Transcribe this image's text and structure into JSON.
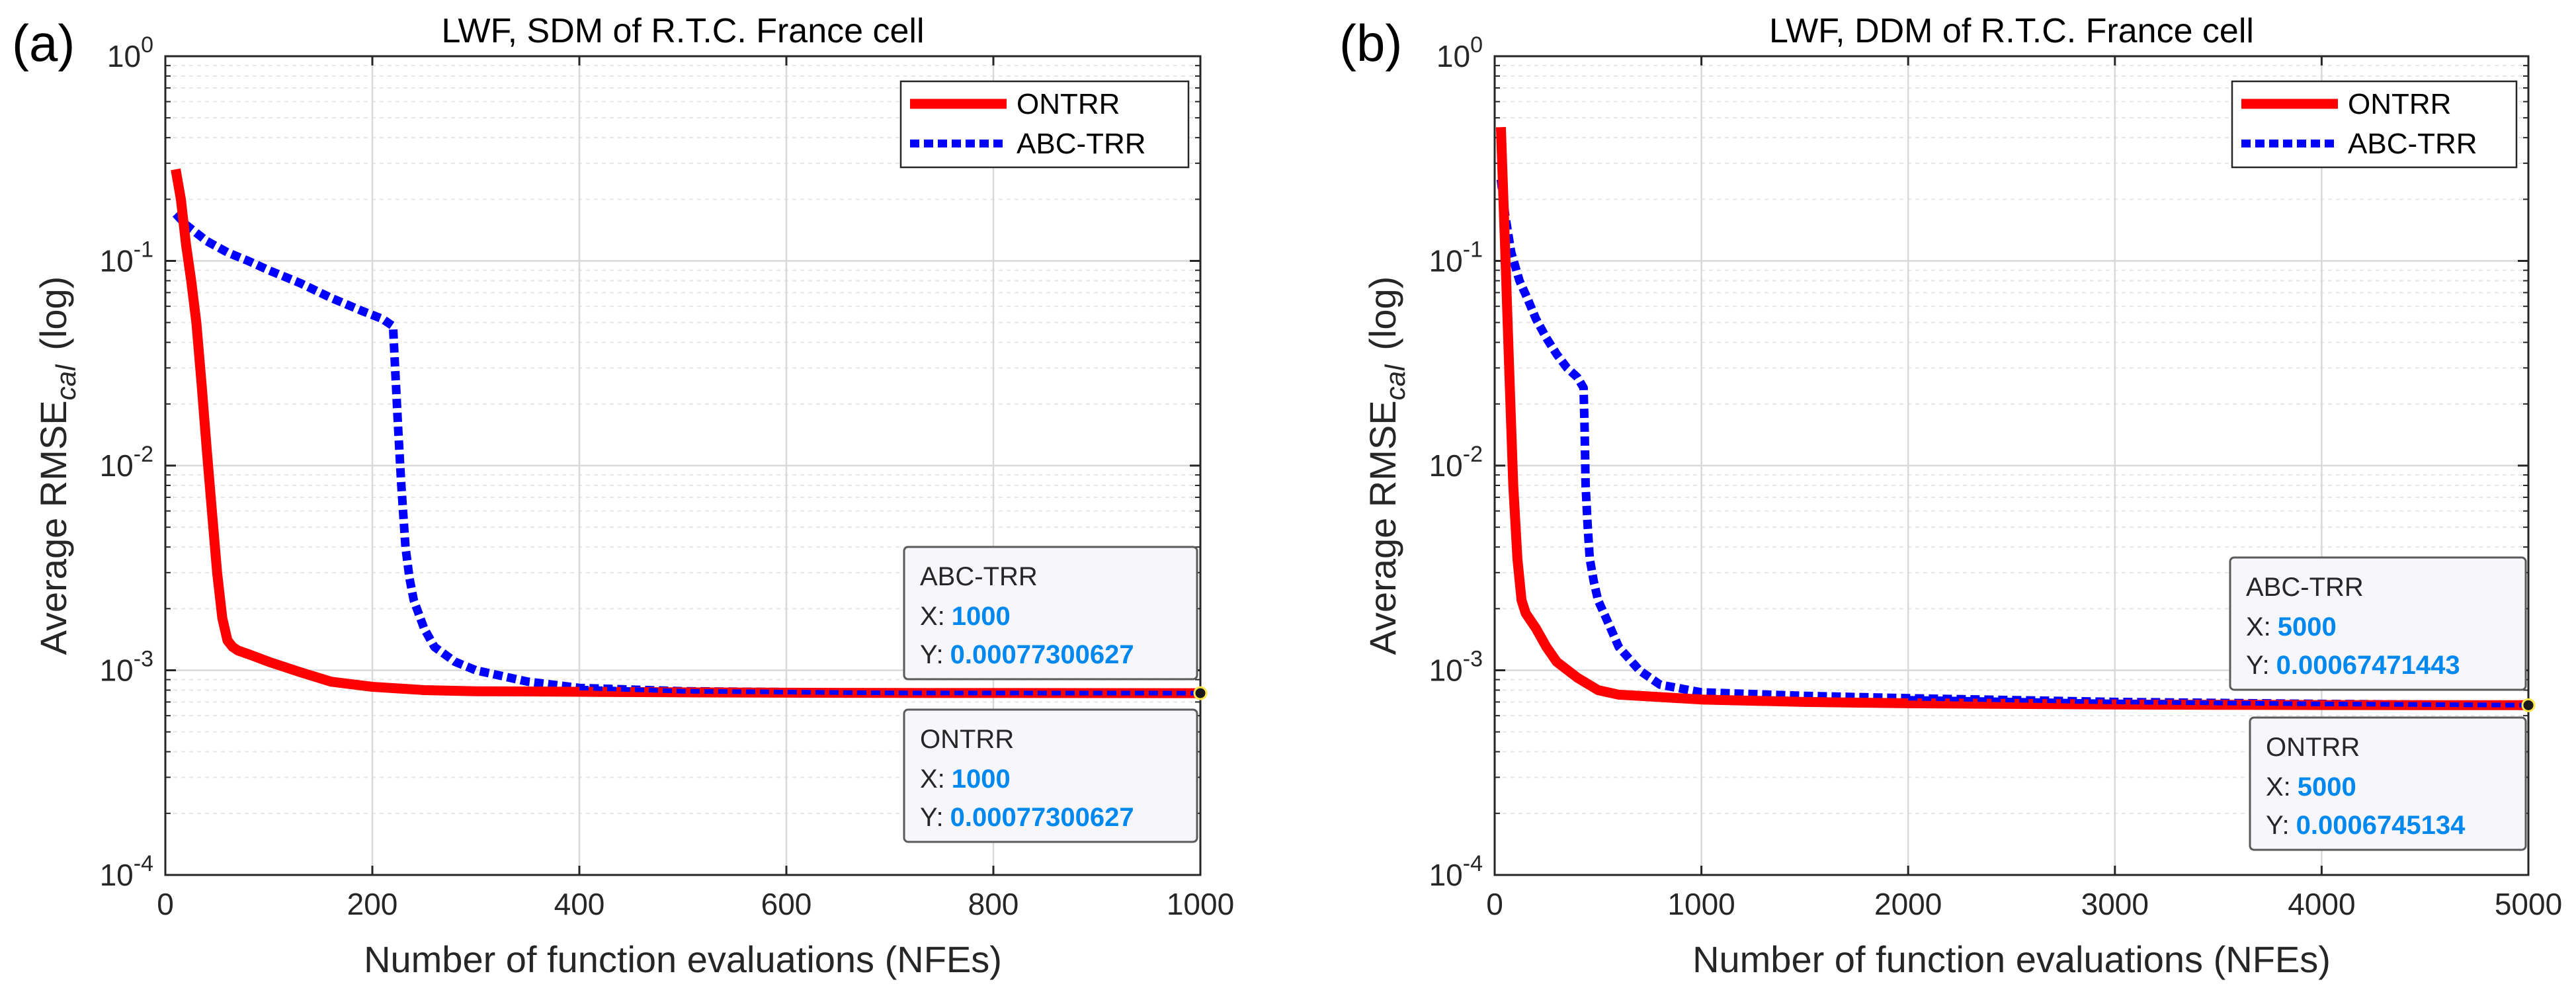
{
  "chart_data": [
    {
      "panel_label": "(a)",
      "type": "line",
      "title": "LWF, SDM of R.T.C. France cell",
      "xlabel": "Number of function evaluations (NFEs)",
      "ylabel": "Average RMSE",
      "ylabel_sub": "cal",
      "ylabel_suffix": "(log)",
      "yscale": "log",
      "xlim": [
        0,
        1000
      ],
      "ylim_exp": [
        -4,
        0
      ],
      "xticks": [
        0,
        200,
        400,
        600,
        800,
        1000
      ],
      "xtick_labels": [
        "0",
        "200",
        "400",
        "600",
        "800",
        "1000"
      ],
      "ytick_exps": [
        0,
        -1,
        -2,
        -3,
        -4
      ],
      "ytick_labels": [
        "10",
        "10",
        "10",
        "10",
        "10"
      ],
      "ytick_label_exps": [
        "0",
        "-1",
        "-2",
        "-3",
        "-4"
      ],
      "legend": {
        "position": "top-right",
        "entries": [
          "ONTRR",
          "ABC-TRR"
        ]
      },
      "series": [
        {
          "name": "ONTRR",
          "color": "#ff0000",
          "style": "solid",
          "x": [
            10,
            15,
            20,
            25,
            30,
            35,
            40,
            45,
            50,
            55,
            60,
            65,
            70,
            80,
            100,
            130,
            160,
            200,
            250,
            300,
            400,
            500,
            700,
            1000
          ],
          "y": [
            0.28,
            0.2,
            0.12,
            0.08,
            0.05,
            0.025,
            0.012,
            0.006,
            0.003,
            0.0018,
            0.0014,
            0.0013,
            0.00125,
            0.0012,
            0.0011,
            0.00098,
            0.00088,
            0.00083,
            0.0008,
            0.00079,
            0.000785,
            0.00078,
            0.000775,
            0.000773
          ]
        },
        {
          "name": "ABC-TRR",
          "color": "#0000ff",
          "style": "dotted",
          "x": [
            10,
            20,
            40,
            60,
            80,
            100,
            130,
            160,
            190,
            210,
            220,
            222,
            225,
            228,
            232,
            236,
            240,
            250,
            260,
            280,
            300,
            350,
            400,
            500,
            700,
            1000
          ],
          "y": [
            0.17,
            0.15,
            0.125,
            0.11,
            0.1,
            0.09,
            0.078,
            0.066,
            0.057,
            0.052,
            0.048,
            0.03,
            0.015,
            0.008,
            0.004,
            0.0028,
            0.0022,
            0.0016,
            0.0013,
            0.0011,
            0.001,
            0.00088,
            0.00082,
            0.00079,
            0.000775,
            0.000773
          ]
        }
      ],
      "datatips": [
        {
          "series": "ABC-TRR",
          "label": "ABC-TRR",
          "x_prefix": "X:",
          "x": "1000",
          "y_prefix": "Y:",
          "y": "0.00077300627"
        },
        {
          "series": "ONTRR",
          "label": "ONTRR",
          "x_prefix": "X:",
          "x": "1000",
          "y_prefix": "Y:",
          "y": "0.00077300627"
        }
      ],
      "marker": {
        "x": 1000,
        "y": 0.000773
      }
    },
    {
      "panel_label": "(b)",
      "type": "line",
      "title": "LWF, DDM of R.T.C. France cell",
      "xlabel": "Number of function evaluations (NFEs)",
      "ylabel": "Average RMSE",
      "ylabel_sub": "cal",
      "ylabel_suffix": "(log)",
      "yscale": "log",
      "xlim": [
        0,
        5000
      ],
      "ylim_exp": [
        -4,
        0
      ],
      "xticks": [
        0,
        1000,
        2000,
        3000,
        4000,
        5000
      ],
      "xtick_labels": [
        "0",
        "1000",
        "2000",
        "3000",
        "4000",
        "5000"
      ],
      "ytick_exps": [
        0,
        -1,
        -2,
        -3,
        -4
      ],
      "ytick_labels": [
        "10",
        "10",
        "10",
        "10",
        "10"
      ],
      "ytick_label_exps": [
        "0",
        "-1",
        "-2",
        "-3",
        "-4"
      ],
      "legend": {
        "position": "top-right",
        "entries": [
          "ONTRR",
          "ABC-TRR"
        ]
      },
      "series": [
        {
          "name": "ONTRR",
          "color": "#ff0000",
          "style": "solid",
          "x": [
            30,
            50,
            70,
            90,
            110,
            130,
            150,
            200,
            250,
            300,
            400,
            500,
            600,
            800,
            1000,
            1500,
            2000,
            3000,
            4000,
            5000
          ],
          "y": [
            0.45,
            0.12,
            0.03,
            0.008,
            0.0035,
            0.0022,
            0.0019,
            0.0016,
            0.0013,
            0.0011,
            0.00092,
            0.0008,
            0.00076,
            0.00074,
            0.00072,
            0.0007,
            0.00069,
            0.00068,
            0.000676,
            0.000675
          ]
        },
        {
          "name": "ABC-TRR",
          "color": "#0000ff",
          "style": "dotted",
          "x": [
            30,
            50,
            80,
            120,
            160,
            200,
            250,
            300,
            350,
            400,
            430,
            435,
            440,
            450,
            460,
            480,
            500,
            550,
            600,
            700,
            800,
            1000,
            1500,
            2000,
            3000,
            4000,
            5000
          ],
          "y": [
            0.25,
            0.17,
            0.11,
            0.08,
            0.065,
            0.052,
            0.042,
            0.035,
            0.03,
            0.027,
            0.024,
            0.015,
            0.008,
            0.005,
            0.0035,
            0.0027,
            0.0022,
            0.0017,
            0.0013,
            0.001,
            0.00085,
            0.00078,
            0.00075,
            0.00073,
            0.0007,
            0.000685,
            0.000675
          ]
        }
      ],
      "datatips": [
        {
          "series": "ABC-TRR",
          "label": "ABC-TRR",
          "x_prefix": "X:",
          "x": "5000",
          "y_prefix": "Y:",
          "y": "0.00067471443"
        },
        {
          "series": "ONTRR",
          "label": "ONTRR",
          "x_prefix": "X:",
          "x": "5000",
          "y_prefix": "Y:",
          "y": "0.0006745134"
        }
      ],
      "marker": {
        "x": 5000,
        "y": 0.000675
      }
    }
  ],
  "colors": {
    "tip_value": "#0088ee",
    "grid": "#d9d9d9",
    "axis": "#262626"
  }
}
